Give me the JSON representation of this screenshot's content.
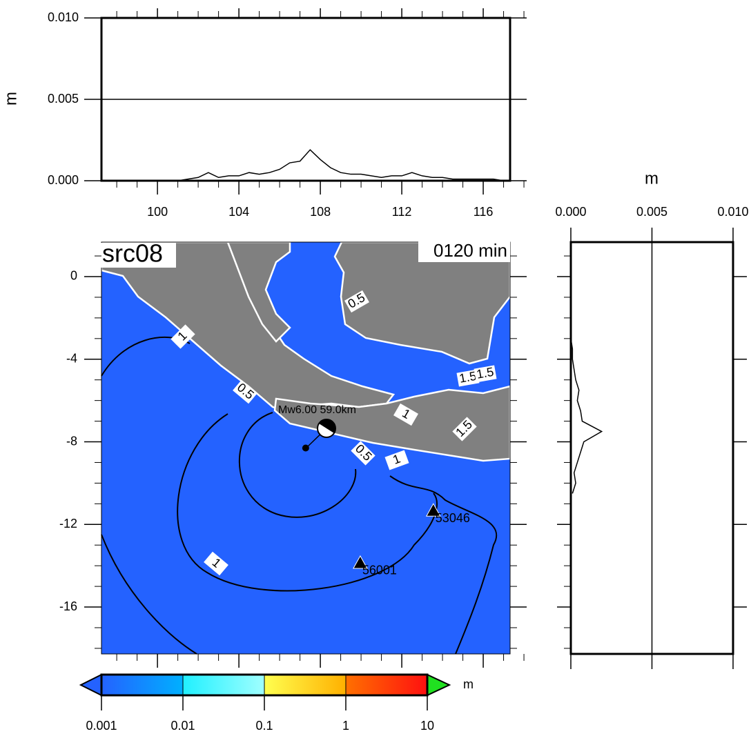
{
  "top_profile": {
    "ylabel": "m",
    "ylim": [
      0,
      0.01
    ],
    "yticks": [
      {
        "value": 0,
        "label": "0.000"
      },
      {
        "value": 0.005,
        "label": "0.005"
      },
      {
        "value": 0.01,
        "label": "0.010"
      }
    ],
    "xlim": [
      97.25,
      117.32
    ],
    "xticks": [
      100,
      104,
      108,
      112,
      116
    ],
    "x": [
      101,
      101.5,
      102,
      102.5,
      103,
      103.5,
      104,
      104.5,
      105,
      105.5,
      106,
      106.5,
      107,
      107.5,
      108,
      108.5,
      109,
      109.5,
      110,
      110.5,
      111,
      111.5,
      112,
      112.5,
      113,
      113.5,
      114,
      114.5,
      115,
      115.5,
      116,
      116.5,
      117
    ],
    "values": [
      0,
      0.0001,
      0.0002,
      0.0005,
      0.0002,
      0.0003,
      0.0003,
      0.0005,
      0.0004,
      0.0005,
      0.0007,
      0.0011,
      0.0012,
      0.0019,
      0.0013,
      0.0008,
      0.0005,
      0.0004,
      0.0004,
      0.0003,
      0.0002,
      0.0003,
      0.0003,
      0.0005,
      0.0003,
      0.0002,
      0.0002,
      0.0001,
      0.0001,
      0.0001,
      0.0001,
      0.0001,
      0
    ]
  },
  "right_profile": {
    "xlabel": "m",
    "xlim": [
      0,
      0.01
    ],
    "xticks": [
      {
        "value": 0,
        "label": "0.000"
      },
      {
        "value": 0.005,
        "label": "0.005"
      },
      {
        "value": 0.01,
        "label": "0.010"
      }
    ],
    "ylim": [
      -18.27,
      1.67
    ],
    "y": [
      -3,
      -3.5,
      -4,
      -4.5,
      -5,
      -5.5,
      -6,
      -6.5,
      -7,
      -7.5,
      -8,
      -8.5,
      -9,
      -9.5,
      -10,
      -10.5
    ],
    "values": [
      0,
      0.0001,
      0.0001,
      0.0002,
      0.0003,
      0.0005,
      0.0004,
      0.0006,
      0.0007,
      0.0019,
      0.0008,
      0.0006,
      0.0004,
      0.0002,
      0.0003,
      0.0001
    ]
  },
  "map": {
    "title": "src08",
    "time_label": "0120 min",
    "xlim": [
      97.25,
      117.32
    ],
    "ylim": [
      -18.27,
      1.67
    ],
    "yticks": [
      0,
      -4,
      -8,
      -12,
      -16
    ],
    "water_color": "#2462ff",
    "land_color": "#808080",
    "event_label": "Mw6.00  59.0km",
    "epicenter": {
      "lon": 107.28,
      "lat": -8.3
    },
    "stations": [
      {
        "name": "53046",
        "lon": 113.55,
        "lat": -11.33
      },
      {
        "name": "56001",
        "lon": 109.96,
        "lat": -13.86
      }
    ],
    "contour_labels": [
      0.5,
      1,
      0.5,
      1.5,
      1.5,
      1,
      1.5,
      0.5,
      1,
      1
    ]
  },
  "colorbar": {
    "unit": "m",
    "ticks": [
      0.001,
      0.01,
      0.1,
      1,
      10
    ],
    "colors": [
      "#2462ff",
      "#00b0ff",
      "#20f0ff",
      "#a0ffff",
      "#ffff50",
      "#ffb000",
      "#ff7000",
      "#ff1010"
    ],
    "under_color": "#2462ff",
    "over_color": "#20e020"
  }
}
